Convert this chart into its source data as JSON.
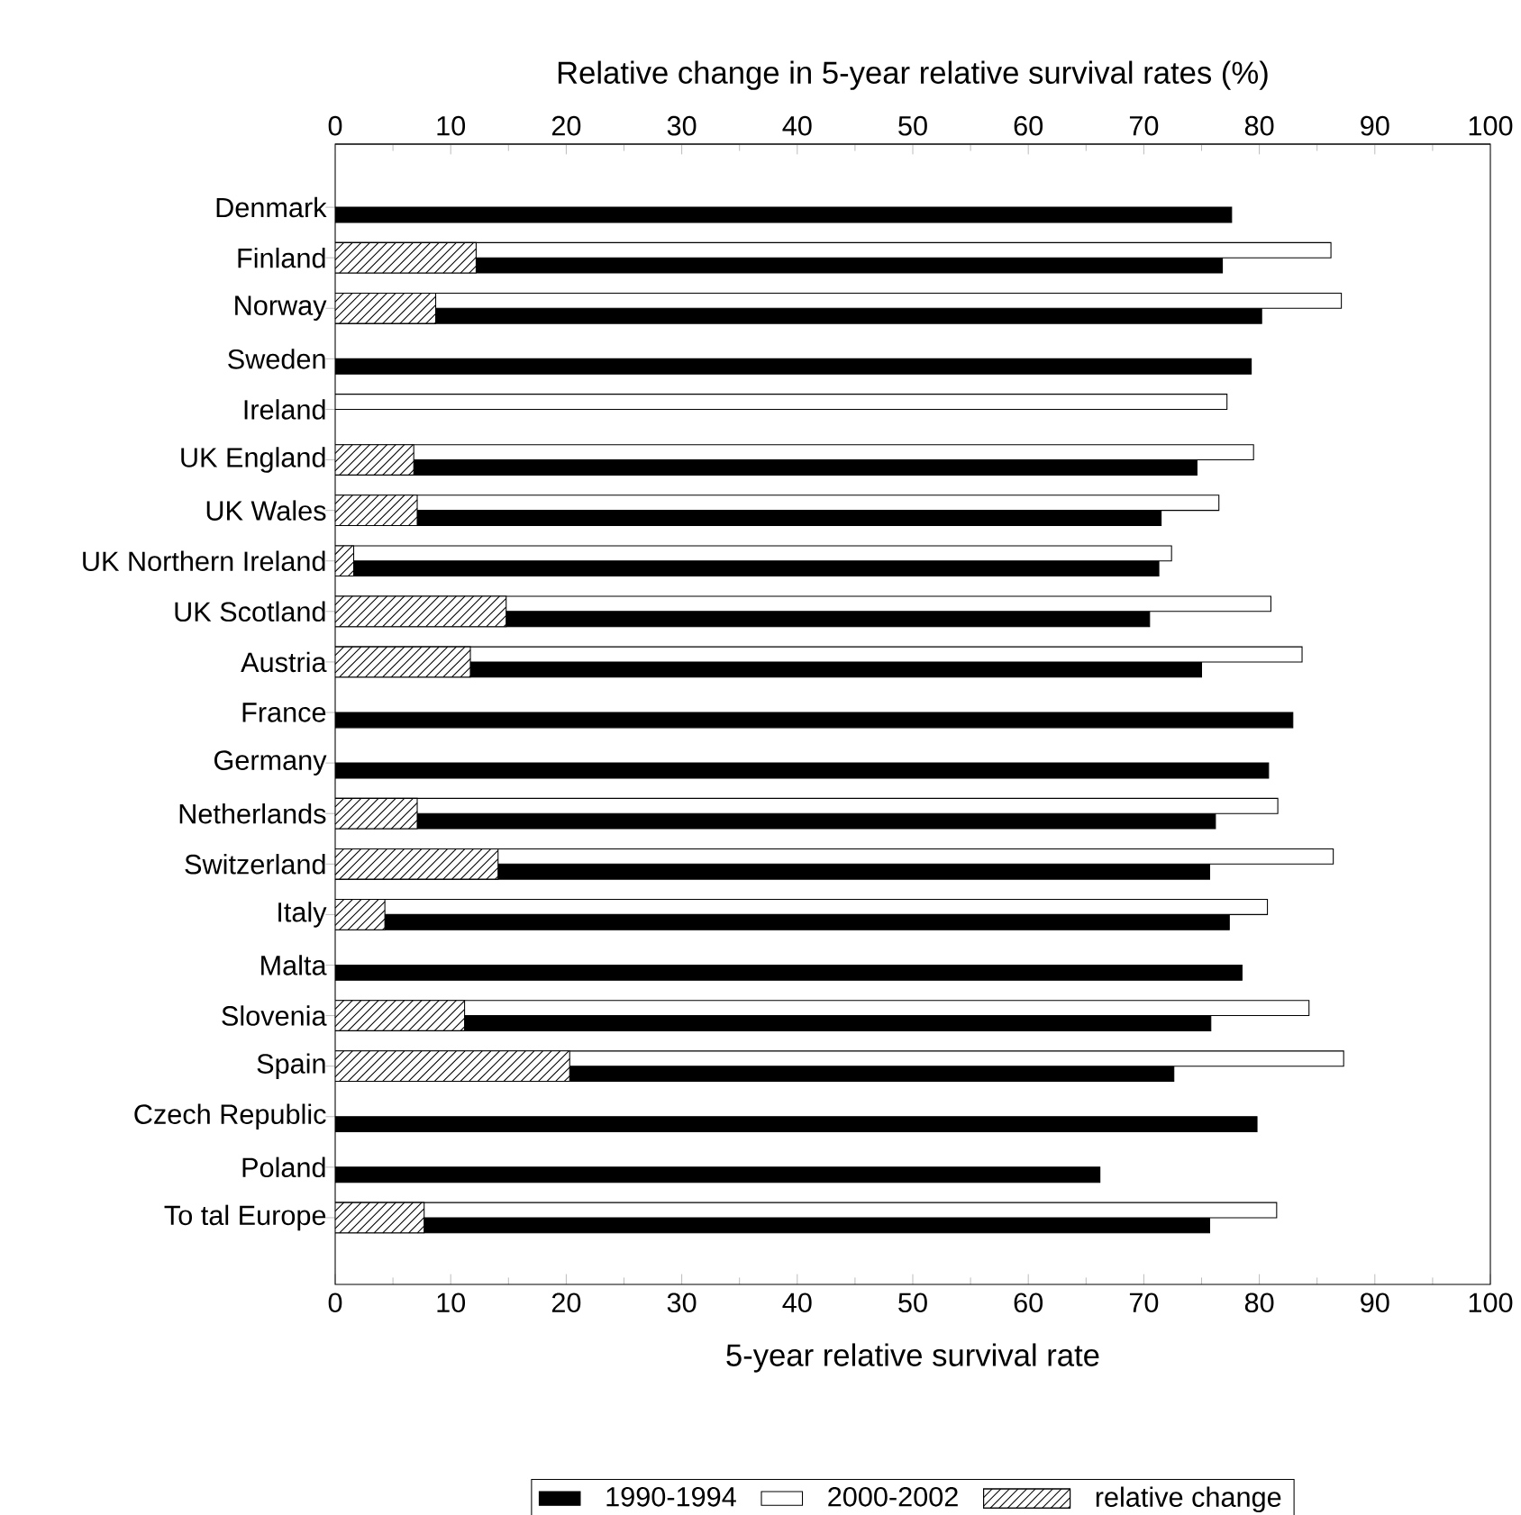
{
  "chart_data": {
    "type": "bar",
    "orientation": "horizontal",
    "xlabel": "5-year relative survival rate",
    "x2label": "Relative change in 5-year relative survival rates (%)",
    "categories": [
      "Denmark",
      "Finland",
      "Norway",
      "Sweden",
      "Ireland",
      "UK England",
      "UK Wales",
      "UK Northern Ireland",
      "UK Scotland",
      "Austria",
      "France",
      "Germany",
      "Netherlands",
      "Switzerland",
      "Italy",
      "Malta",
      "Slovenia",
      "Spain",
      "Czech Republic",
      "Poland",
      "To tal Europe"
    ],
    "series": [
      {
        "name": "1990-1994",
        "color": "#000000",
        "values": [
          77.6,
          76.8,
          80.2,
          79.3,
          null,
          74.6,
          71.5,
          71.3,
          70.5,
          75.0,
          82.9,
          80.8,
          76.2,
          75.7,
          77.4,
          78.5,
          75.8,
          72.6,
          79.8,
          66.2,
          75.7
        ]
      },
      {
        "name": "2000-2002",
        "color": "#ffffff",
        "values": [
          null,
          86.2,
          87.1,
          null,
          77.2,
          79.5,
          76.5,
          72.4,
          81.0,
          83.7,
          null,
          null,
          81.6,
          86.4,
          80.7,
          null,
          84.3,
          87.3,
          null,
          null,
          81.5
        ]
      },
      {
        "name": "relative change",
        "color": "#000000",
        "axis": "x2",
        "values": [
          null,
          12.2,
          8.7,
          null,
          null,
          6.8,
          7.1,
          1.6,
          14.8,
          11.7,
          null,
          null,
          7.1,
          14.1,
          4.3,
          null,
          11.2,
          20.3,
          null,
          null,
          7.7
        ]
      }
    ],
    "xlim": [
      0,
      100
    ],
    "xticks": [
      0,
      10,
      20,
      30,
      40,
      50,
      60,
      70,
      80,
      90,
      100
    ],
    "x2lim": [
      0,
      100
    ],
    "x2ticks": [
      0,
      10,
      20,
      30,
      40,
      50,
      60,
      70,
      80,
      90,
      100
    ],
    "legend": "bottom"
  }
}
